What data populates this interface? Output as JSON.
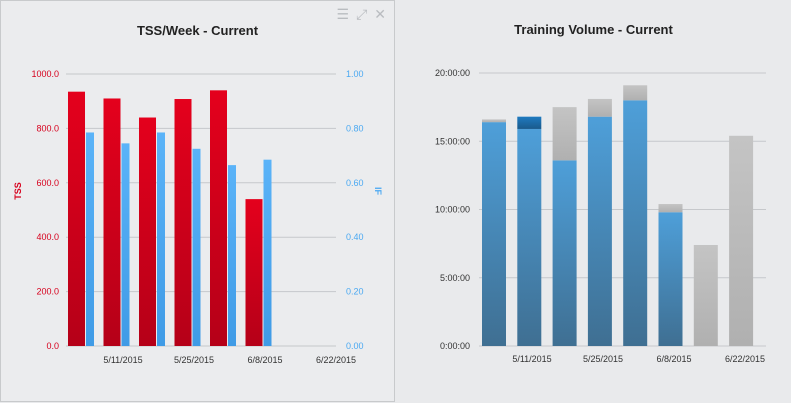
{
  "colors": {
    "tss": "#d7001d",
    "if": "#4ba9f2",
    "volume_blue": "#4d93c5",
    "volume_grey": "#b9b9b9",
    "volume_dark_blue": "#1e73b8"
  },
  "left_panel": {
    "icons": [
      "menu-icon",
      "resize-icon",
      "close-icon"
    ],
    "menu_glyph": "☰",
    "resize_glyph": "⤢",
    "close_glyph": "✕"
  },
  "chart_data": [
    {
      "type": "bar",
      "title": "TSS/Week - Current",
      "x_tick_labels": [
        "5/11/2015",
        "5/25/2015",
        "6/8/2015",
        "6/22/2015"
      ],
      "y_left": {
        "label": "TSS",
        "range": [
          0,
          1000
        ],
        "ticks": [
          "0.0",
          "200.0",
          "400.0",
          "600.0",
          "800.0",
          "1000.0"
        ]
      },
      "y_right": {
        "label": "IF",
        "range": [
          0,
          1
        ],
        "ticks": [
          "0.00",
          "0.20",
          "0.40",
          "0.60",
          "0.80",
          "1.00"
        ]
      },
      "grid": true,
      "series": [
        {
          "name": "TSS",
          "axis": "left",
          "values": [
            935,
            910,
            840,
            908,
            940,
            540
          ]
        },
        {
          "name": "IF",
          "axis": "right",
          "values": [
            0.785,
            0.745,
            0.785,
            0.725,
            0.665,
            0.685
          ]
        }
      ]
    },
    {
      "type": "bar",
      "title": "Training Volume - Current",
      "x_tick_labels": [
        "5/11/2015",
        "5/25/2015",
        "6/8/2015",
        "6/22/2015"
      ],
      "y": {
        "range": [
          "0:00:00",
          "20:00:00"
        ],
        "ticks": [
          "0:00:00",
          "5:00:00",
          "10:00:00",
          "15:00:00",
          "20:00:00"
        ]
      },
      "grid": true,
      "stacked": true,
      "series_values_hours": {
        "completed": [
          16.4,
          15.9,
          13.6,
          16.8,
          18.0,
          9.8,
          0,
          0
        ],
        "completed_extra": [
          0,
          0.9,
          0,
          0,
          0,
          0,
          0,
          0
        ],
        "planned_remaining": [
          0.2,
          0,
          3.9,
          1.3,
          1.1,
          0.6,
          7.4,
          15.4
        ]
      }
    }
  ]
}
